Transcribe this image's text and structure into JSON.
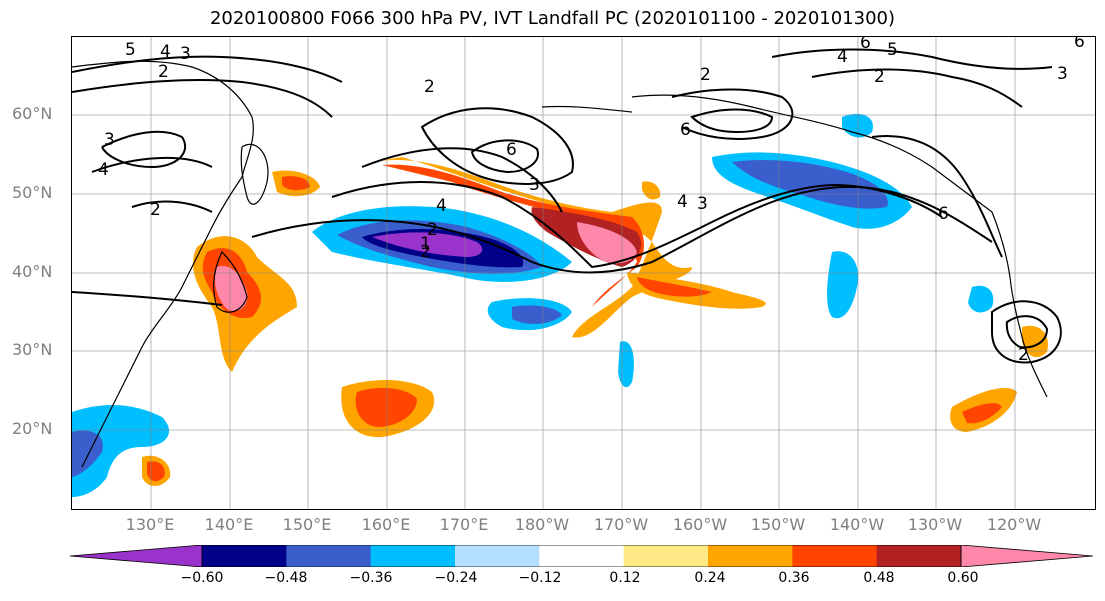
{
  "title": "2020100800 F066 300 hPa PV, IVT Landfall PC (2020101100 - 2020101300)",
  "latitude_labels": [
    "60°N",
    "50°N",
    "40°N",
    "30°N",
    "20°N"
  ],
  "longitude_labels": [
    "130°E",
    "140°E",
    "150°E",
    "160°E",
    "170°E",
    "180°W",
    "170°W",
    "160°W",
    "150°W",
    "140°W",
    "130°W",
    "120°W"
  ],
  "colorbar": {
    "colors": [
      "#9933cc",
      "#000088",
      "#3a5fcd",
      "#00bfff",
      "#b3e0ff",
      "#ffffff",
      "#ffe987",
      "#ffa500",
      "#ff4500",
      "#b22222",
      "#ff88aa"
    ],
    "tick_labels": [
      "−0.60",
      "−0.48",
      "−0.36",
      "−0.24",
      "−0.12",
      "0.12",
      "0.24",
      "0.36",
      "0.48",
      "0.60"
    ]
  },
  "contour_labels": [
    "5",
    "4",
    "3",
    "2",
    "3",
    "4",
    "2",
    "2",
    "6",
    "3",
    "2",
    "4",
    "2",
    "1",
    "4",
    "3",
    "6",
    "6",
    "5",
    "4",
    "2",
    "3",
    "6",
    "6",
    "2",
    "2"
  ],
  "icons": {
    "map": "map-icon"
  }
}
